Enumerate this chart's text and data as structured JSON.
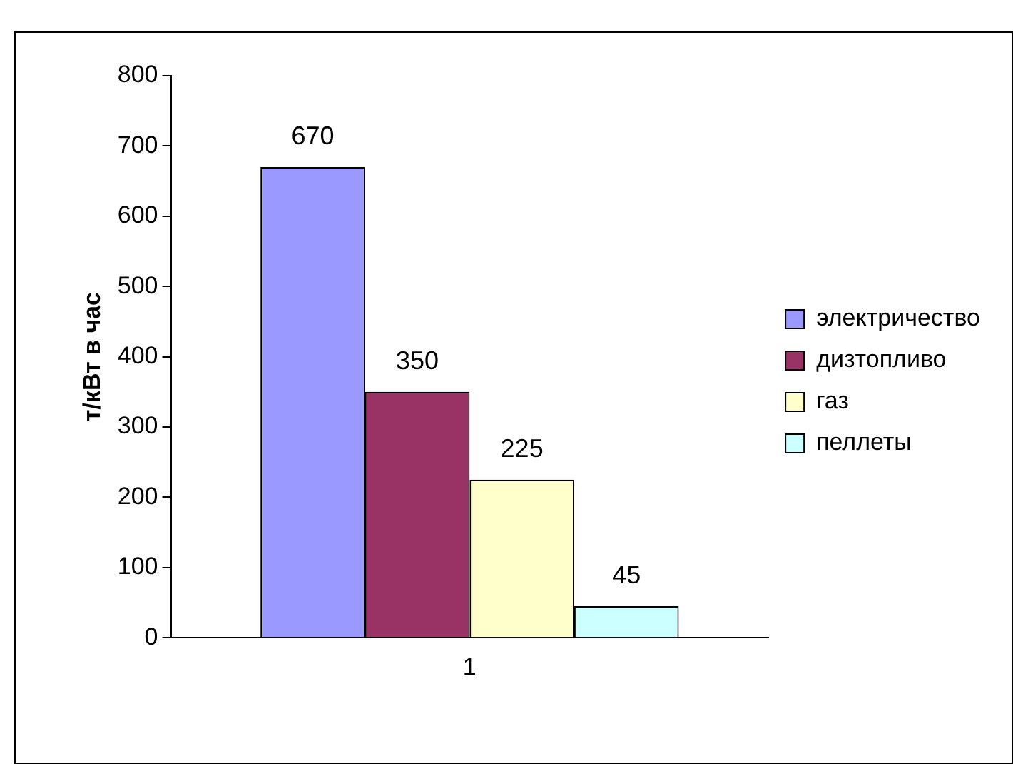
{
  "chart_data": {
    "type": "bar",
    "ylabel": "т/кВт в час",
    "categories": [
      "1"
    ],
    "series": [
      {
        "name": "электричество",
        "color": "#9999ff",
        "values": [
          670
        ]
      },
      {
        "name": "дизтопливо",
        "color": "#993366",
        "values": [
          350
        ]
      },
      {
        "name": "газ",
        "color": "#ffffcc",
        "values": [
          225
        ]
      },
      {
        "name": "пеллеты",
        "color": "#ccffff",
        "values": [
          45
        ]
      }
    ],
    "ylim": [
      0,
      800
    ],
    "yticks": [
      0,
      100,
      200,
      300,
      400,
      500,
      600,
      700,
      800
    ],
    "grid": false,
    "legend": "right",
    "data_labels": true
  }
}
